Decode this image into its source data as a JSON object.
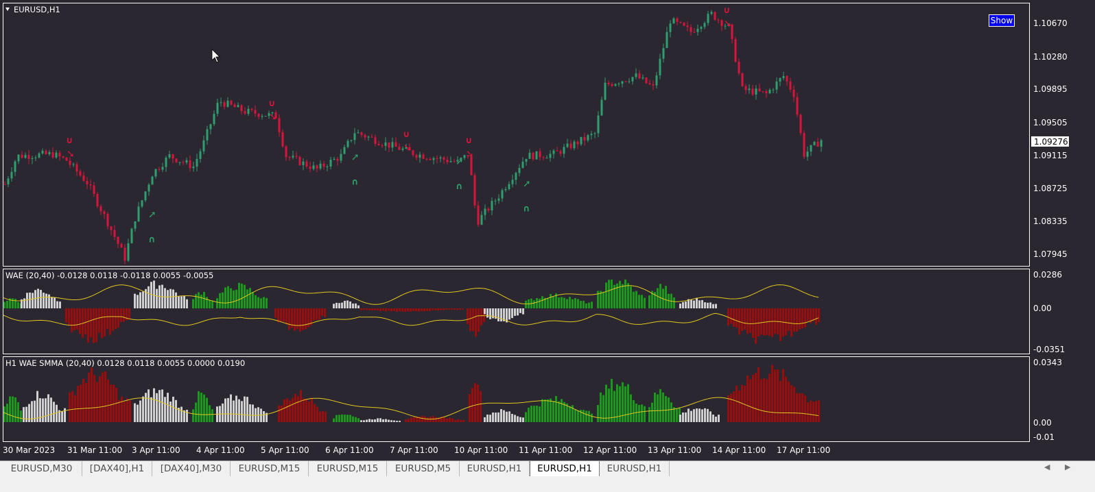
{
  "symbol_title": "EURUSD,H1",
  "show_button_label": "Show",
  "current_price": "1.09276",
  "price_axis_labels": [
    "1.10670",
    "1.10280",
    "1.09895",
    "1.09505",
    "1.09115",
    "1.08725",
    "1.08335",
    "1.07945"
  ],
  "wae_panel": {
    "label": "WAE (20,40) -0.0128 0.0118 -0.0118 0.0055 -0.0055",
    "axis_labels": [
      "0.0286",
      "0.00",
      "-0.0351"
    ]
  },
  "smma_panel": {
    "label": "H1  WAE  SMMA (20,40) 0.0128 0.0118 0.0055 0.0000 0.0190",
    "axis_labels": [
      "0.0343",
      "0.00",
      "-0.01"
    ]
  },
  "time_axis_labels": [
    "30 Mar 2023",
    "31 Mar 11:00",
    "3 Apr 11:00",
    "4 Apr 11:00",
    "5 Apr 11:00",
    "6 Apr 11:00",
    "7 Apr 11:00",
    "10 Apr 11:00",
    "11 Apr 11:00",
    "12 Apr 11:00",
    "13 Apr 11:00",
    "14 Apr 11:00",
    "17 Apr 11:00"
  ],
  "tabs": [
    "EURUSD,M30",
    "[DAX40],H1",
    "[DAX40],M30",
    "EURUSD,M15",
    "EURUSD,M15",
    "EURUSD,M5",
    "EURUSD,H1",
    "EURUSD,H1",
    "EURUSD,H1"
  ],
  "active_tab": 7,
  "colors": {
    "background": "#2b2730",
    "bull_candle": "#2e9e6e",
    "bear_candle": "#d8143c",
    "hist_green": "#1a9a1a",
    "hist_red": "#9a0d0d",
    "hist_gray": "#d0d0d0",
    "band_line": "#e0c820"
  },
  "chart_data": {
    "type": "candlestick",
    "price_path": [
      {
        "t": 0,
        "p": 1.0878
      },
      {
        "t": 18,
        "p": 1.091
      },
      {
        "t": 70,
        "p": 1.0912
      },
      {
        "t": 90,
        "p": 1.0905
      },
      {
        "t": 120,
        "p": 1.088
      },
      {
        "t": 150,
        "p": 1.0835
      },
      {
        "t": 175,
        "p": 1.0795
      },
      {
        "t": 190,
        "p": 1.084
      },
      {
        "t": 215,
        "p": 1.089
      },
      {
        "t": 240,
        "p": 1.091
      },
      {
        "t": 275,
        "p": 1.0898
      },
      {
        "t": 290,
        "p": 1.0925
      },
      {
        "t": 312,
        "p": 1.0972
      },
      {
        "t": 350,
        "p": 1.096
      },
      {
        "t": 395,
        "p": 1.0955
      },
      {
        "t": 410,
        "p": 1.091
      },
      {
        "t": 455,
        "p": 1.0895
      },
      {
        "t": 490,
        "p": 1.091
      },
      {
        "t": 510,
        "p": 1.0937
      },
      {
        "t": 550,
        "p": 1.0925
      },
      {
        "t": 600,
        "p": 1.0912
      },
      {
        "t": 660,
        "p": 1.0903
      },
      {
        "t": 676,
        "p": 1.0912
      },
      {
        "t": 688,
        "p": 1.0835
      },
      {
        "t": 720,
        "p": 1.0865
      },
      {
        "t": 760,
        "p": 1.091
      },
      {
        "t": 800,
        "p": 1.0912
      },
      {
        "t": 860,
        "p": 1.0935
      },
      {
        "t": 875,
        "p": 1.099
      },
      {
        "t": 920,
        "p": 1.1
      },
      {
        "t": 945,
        "p": 1.0987
      },
      {
        "t": 970,
        "p": 1.1063
      },
      {
        "t": 1000,
        "p": 1.105
      },
      {
        "t": 1030,
        "p": 1.107
      },
      {
        "t": 1055,
        "p": 1.1055
      },
      {
        "t": 1075,
        "p": 1.0985
      },
      {
        "t": 1110,
        "p": 1.098
      },
      {
        "t": 1135,
        "p": 1.1
      },
      {
        "t": 1150,
        "p": 1.098
      },
      {
        "t": 1165,
        "p": 1.0912
      },
      {
        "t": 1190,
        "p": 1.0928
      }
    ],
    "ylim": [
      1.0786,
      1.1082
    ],
    "buy_signals": [
      {
        "t": 212,
        "p": 1.0845
      },
      {
        "t": 508,
        "p": 1.091
      },
      {
        "t": 660,
        "p": 1.0905
      },
      {
        "t": 758,
        "p": 1.088
      }
    ],
    "sell_signals": [
      {
        "t": 95,
        "p": 1.0918
      },
      {
        "t": 390,
        "p": 1.096
      },
      {
        "t": 586,
        "p": 1.0925
      },
      {
        "t": 677,
        "p": 1.0918
      },
      {
        "t": 1053,
        "p": 1.1065
      }
    ],
    "wae_hist_segments": [
      {
        "start": 0,
        "end": 25,
        "color": "green",
        "amp": 0.3
      },
      {
        "start": 25,
        "end": 85,
        "color": "gray",
        "amp": 0.5
      },
      {
        "start": 90,
        "end": 185,
        "color": "red",
        "amp": -0.8
      },
      {
        "start": 190,
        "end": 270,
        "color": "gray",
        "amp": 0.65
      },
      {
        "start": 275,
        "end": 305,
        "color": "green",
        "amp": 0.45
      },
      {
        "start": 310,
        "end": 385,
        "color": "green",
        "amp": 0.6
      },
      {
        "start": 395,
        "end": 470,
        "color": "red",
        "amp": -0.55
      },
      {
        "start": 480,
        "end": 520,
        "color": "gray",
        "amp": 0.2
      },
      {
        "start": 520,
        "end": 670,
        "color": "red",
        "amp": -0.08
      },
      {
        "start": 675,
        "end": 700,
        "color": "red",
        "amp": -0.7
      },
      {
        "start": 700,
        "end": 760,
        "color": "gray",
        "amp": -0.35
      },
      {
        "start": 760,
        "end": 860,
        "color": "green",
        "amp": 0.35
      },
      {
        "start": 865,
        "end": 935,
        "color": "green",
        "amp": 0.75
      },
      {
        "start": 940,
        "end": 980,
        "color": "green",
        "amp": 0.6
      },
      {
        "start": 985,
        "end": 1040,
        "color": "gray",
        "amp": 0.25
      },
      {
        "start": 1055,
        "end": 1190,
        "color": "red",
        "amp": -0.85
      }
    ],
    "smma_hist_segments": [
      {
        "start": 0,
        "end": 28,
        "color": "green",
        "amp": 0.45
      },
      {
        "start": 28,
        "end": 90,
        "color": "gray",
        "amp": 0.5
      },
      {
        "start": 95,
        "end": 185,
        "color": "red",
        "amp": 0.85
      },
      {
        "start": 190,
        "end": 270,
        "color": "gray",
        "amp": 0.55
      },
      {
        "start": 275,
        "end": 305,
        "color": "green",
        "amp": 0.5
      },
      {
        "start": 310,
        "end": 385,
        "color": "gray",
        "amp": 0.45
      },
      {
        "start": 400,
        "end": 470,
        "color": "red",
        "amp": 0.5
      },
      {
        "start": 480,
        "end": 520,
        "color": "green",
        "amp": 0.15
      },
      {
        "start": 520,
        "end": 580,
        "color": "gray",
        "amp": 0.06
      },
      {
        "start": 585,
        "end": 670,
        "color": "red",
        "amp": 0.1
      },
      {
        "start": 678,
        "end": 698,
        "color": "red",
        "amp": 0.85
      },
      {
        "start": 700,
        "end": 760,
        "color": "gray",
        "amp": 0.2
      },
      {
        "start": 760,
        "end": 860,
        "color": "green",
        "amp": 0.4
      },
      {
        "start": 865,
        "end": 935,
        "color": "green",
        "amp": 0.7
      },
      {
        "start": 940,
        "end": 985,
        "color": "green",
        "amp": 0.55
      },
      {
        "start": 985,
        "end": 1045,
        "color": "gray",
        "amp": 0.25
      },
      {
        "start": 1055,
        "end": 1190,
        "color": "red",
        "amp": 0.9
      }
    ]
  }
}
